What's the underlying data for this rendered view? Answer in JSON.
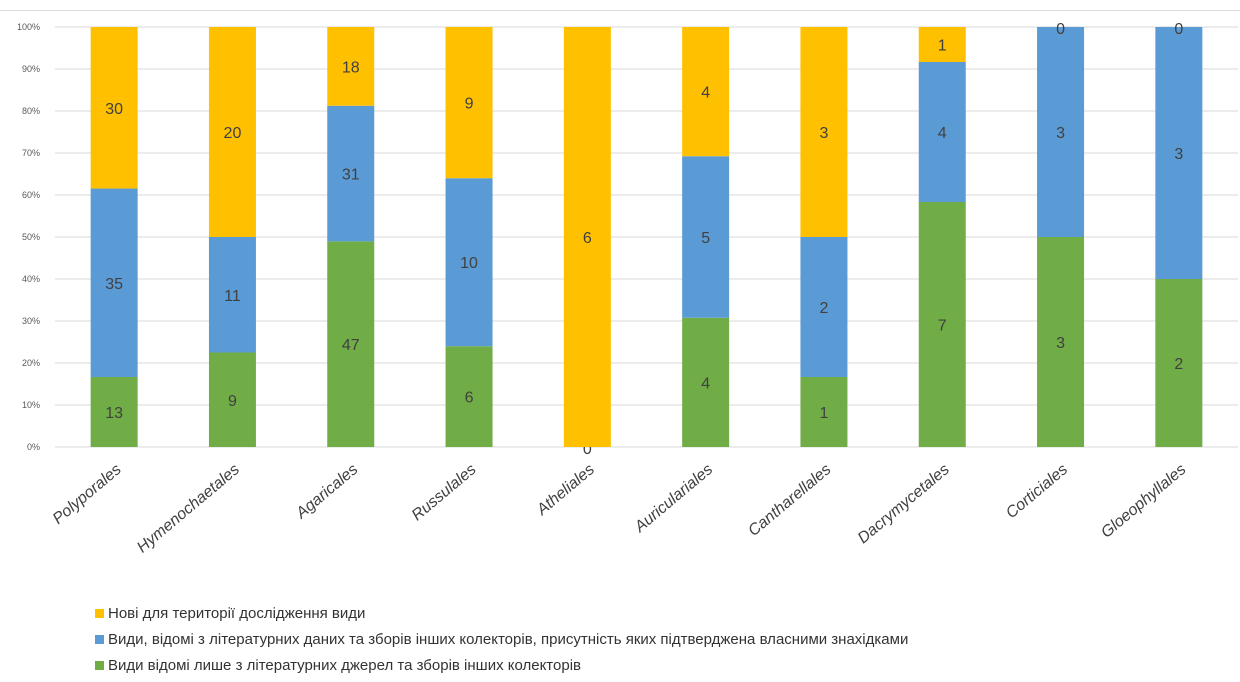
{
  "chart_data": {
    "type": "bar",
    "stacked": true,
    "normalized": true,
    "categories": [
      "Polyporales",
      "Hymenochaetales",
      "Agaricales",
      "Russulales",
      "Atheliales",
      "Auriculariales",
      "Cantharellales",
      "Dacrymycetales",
      "Corticiales",
      "Gloeophyllales"
    ],
    "series": [
      {
        "name": "Види відомі лише з літературних джерел та зборів інших колекторів",
        "color": "#70ad47",
        "values": [
          13,
          9,
          47,
          6,
          0,
          4,
          1,
          7,
          3,
          2
        ],
        "labels": [
          "13",
          "9",
          "47",
          "6",
          "0",
          "4",
          "1",
          "7",
          "3",
          "2"
        ]
      },
      {
        "name": "Види, відомі з літературних даних та зборів інших колекторів, присутність яких підтверджена власними знахідками",
        "color": "#5b9bd5",
        "values": [
          35,
          11,
          31,
          10,
          0,
          5,
          2,
          4,
          3,
          3
        ],
        "labels": [
          "35",
          "11",
          "31",
          "10",
          "",
          "5",
          "2",
          "4",
          "3",
          "3"
        ]
      },
      {
        "name": "Нові для території дослідження види",
        "color": "#ffc000",
        "values": [
          30,
          20,
          18,
          9,
          6,
          4,
          3,
          1,
          0,
          0
        ],
        "labels": [
          "30",
          "20",
          "18",
          "9",
          "6",
          "4",
          "3",
          "1",
          "0",
          "0"
        ]
      }
    ],
    "yticks": [
      "0%",
      "10%",
      "20%",
      "30%",
      "40%",
      "50%",
      "60%",
      "70%",
      "80%",
      "90%",
      "100%"
    ],
    "ylim": [
      0,
      100
    ],
    "grid": true,
    "legend_position": "bottom-left",
    "title": "",
    "xlabel": "",
    "ylabel": ""
  },
  "legend": {
    "items": [
      {
        "label": "Нові для території дослідження види",
        "color": "#ffc000"
      },
      {
        "label": "Види, відомі з літературних даних та зборів інших колекторів, присутність яких підтверджена власними знахідками",
        "color": "#5b9bd5"
      },
      {
        "label": "Види відомі лише з літературних джерел та зборів інших колекторів",
        "color": "#70ad47"
      }
    ]
  }
}
